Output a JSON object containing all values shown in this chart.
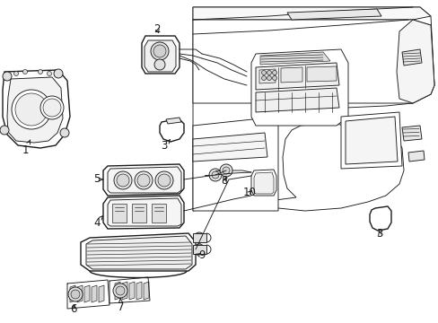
{
  "background_color": "#ffffff",
  "line_color": "#1a1a1a",
  "figsize": [
    4.89,
    3.6
  ],
  "dpi": 100,
  "lw_main": 1.0,
  "lw_thin": 0.65,
  "lw_detail": 0.45,
  "label_fontsize": 8.5
}
